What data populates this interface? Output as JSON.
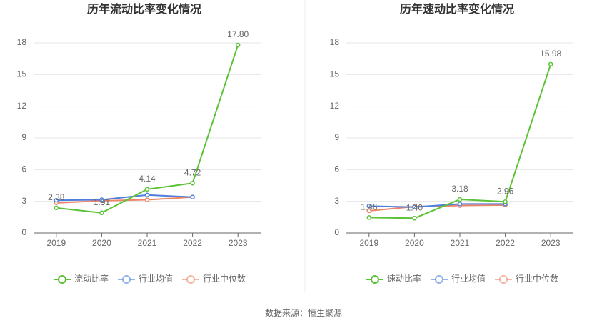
{
  "chart_data": [
    {
      "type": "line",
      "title": "历年流动比率变化情况",
      "categories": [
        "2019",
        "2020",
        "2021",
        "2022",
        "2023"
      ],
      "series": [
        {
          "name": "流动比率",
          "color": "#5bc236",
          "values": [
            2.38,
            1.91,
            4.14,
            4.72,
            17.8
          ],
          "value_labels": [
            "2.38",
            "1.91",
            "4.14",
            "4.72",
            "17.80"
          ]
        },
        {
          "name": "行业均值",
          "color": "#4f7fdc",
          "values": [
            3.1,
            3.15,
            3.6,
            3.4,
            null
          ]
        },
        {
          "name": "行业中位数",
          "color": "#ef8667",
          "values": [
            2.85,
            3.05,
            3.15,
            3.4,
            null
          ]
        }
      ],
      "ylim": [
        0,
        18
      ],
      "yticks": [
        0,
        3,
        6,
        9,
        12,
        15,
        18
      ],
      "grid": true
    },
    {
      "type": "line",
      "title": "历年速动比率变化情况",
      "categories": [
        "2019",
        "2020",
        "2021",
        "2022",
        "2023"
      ],
      "series": [
        {
          "name": "速动比率",
          "color": "#5bc236",
          "values": [
            1.46,
            1.4,
            3.18,
            2.96,
            15.98
          ],
          "value_labels": [
            "1.46",
            "1.40",
            "3.18",
            "2.96",
            "15.98"
          ]
        },
        {
          "name": "行业均值",
          "color": "#4f7fdc",
          "values": [
            2.55,
            2.45,
            2.75,
            2.75,
            null
          ]
        },
        {
          "name": "行业中位数",
          "color": "#ef8667",
          "values": [
            2.1,
            2.5,
            2.6,
            2.65,
            null
          ]
        }
      ],
      "ylim": [
        0,
        18
      ],
      "yticks": [
        0,
        3,
        6,
        9,
        12,
        15,
        18
      ],
      "grid": true
    }
  ],
  "source": "数据来源：恒生聚源"
}
